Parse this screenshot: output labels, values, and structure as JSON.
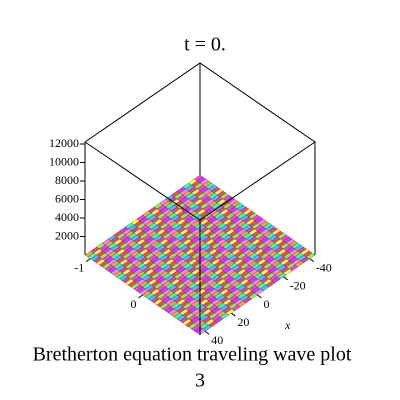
{
  "chart_data": {
    "type": "surface3d",
    "title": "t = 0.",
    "caption": [
      "Bretherton equation  traveling wave plot",
      "3"
    ],
    "xlabel": "x",
    "xlim": [
      -44,
      44
    ],
    "xticks": [
      -40,
      -20,
      0,
      20,
      40
    ],
    "ylim": [
      -1.1,
      1.1
    ],
    "yticks": [
      -1,
      0
    ],
    "zlim": [
      0,
      12000
    ],
    "zticks": [
      2000,
      4000,
      6000,
      8000,
      10000,
      12000
    ]
  }
}
